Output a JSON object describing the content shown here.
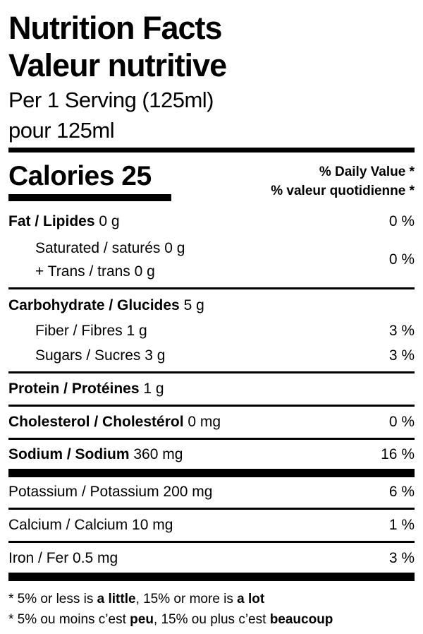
{
  "header": {
    "title_en": "Nutrition Facts",
    "title_fr": "Valeur nutritive",
    "serving_en": "Per 1 Serving (125ml)",
    "serving_fr": "pour 125ml"
  },
  "calories": {
    "label": "Calories",
    "value": "25"
  },
  "daily_value": {
    "en": "% Daily Value *",
    "fr": "% valeur quotidienne *"
  },
  "nutrients": {
    "fat": {
      "label": "Fat / Lipides",
      "amount": "0 g",
      "dv": "0 %"
    },
    "saturated": {
      "label": "Saturated / saturés 0 g"
    },
    "trans": {
      "label": "+ Trans / trans 0 g"
    },
    "sat_trans_dv": "0 %",
    "carbohydrate": {
      "label": "Carbohydrate / Glucides",
      "amount": "5 g"
    },
    "fiber": {
      "label": "Fiber / Fibres 1 g",
      "dv": "3 %"
    },
    "sugars": {
      "label": "Sugars / Sucres 3 g",
      "dv": "3 %"
    },
    "protein": {
      "label": "Protein / Protéines",
      "amount": "1 g"
    },
    "cholesterol": {
      "label": "Cholesterol / Cholestérol",
      "amount": "0 mg",
      "dv": "0 %"
    },
    "sodium": {
      "label": "Sodium / Sodium",
      "amount": "360 mg",
      "dv": "16 %"
    },
    "potassium": {
      "label": "Potassium / Potassium 200 mg",
      "dv": "6 %"
    },
    "calcium": {
      "label": "Calcium / Calcium 10 mg",
      "dv": "1 %"
    },
    "iron": {
      "label": "Iron / Fer 0.5 mg",
      "dv": "3 %"
    }
  },
  "footnote": {
    "en": {
      "a": "* 5% or less is ",
      "b": "a little",
      "c": ", 15% or more is ",
      "d": "a lot"
    },
    "fr": {
      "a": "* 5% ou moins c’est ",
      "b": "peu",
      "c": ", 15% ou plus c’est ",
      "d": "beaucoup"
    }
  }
}
